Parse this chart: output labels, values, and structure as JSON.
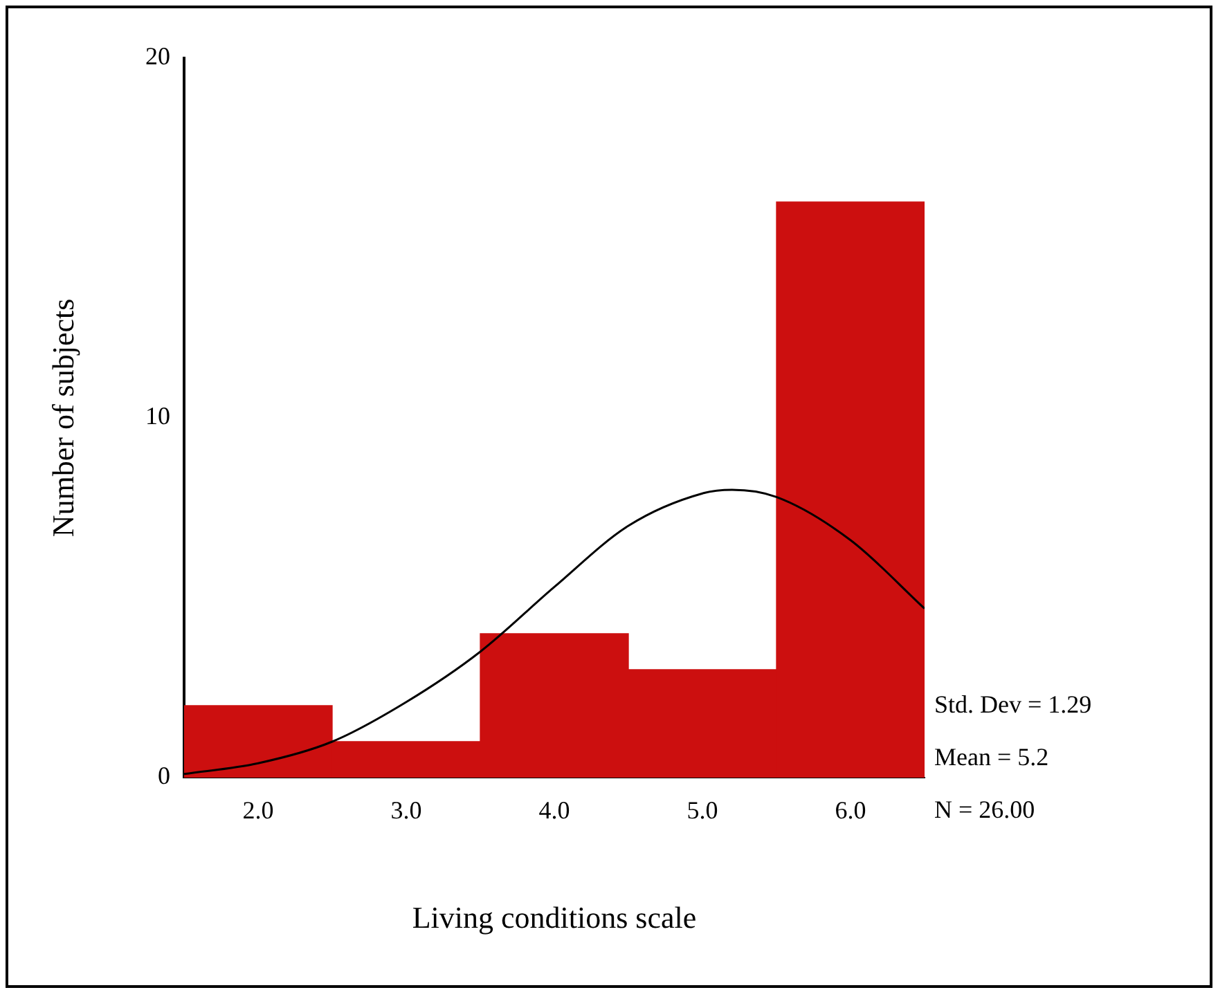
{
  "chart_data": {
    "type": "histogram",
    "xlabel": "Living conditions scale",
    "ylabel": "Number of subjects",
    "bins": [
      1.5,
      2.5,
      3.5,
      4.5,
      5.5,
      6.5
    ],
    "values": [
      2,
      1,
      4,
      3,
      16
    ],
    "color": "#cc0f0f",
    "series": [
      {
        "type": "line",
        "color": "#000000",
        "x": [
          1.5,
          2,
          2.5,
          3,
          3.5,
          4,
          4.5,
          5,
          5.2,
          5.5,
          6,
          6.5
        ],
        "values": [
          0.1,
          0.4,
          1,
          2.1,
          3.5,
          5.3,
          7,
          7.9,
          8,
          7.8,
          6.6,
          4.7
        ]
      }
    ],
    "xlim": [
      1.5,
      6.5
    ],
    "xticks": [
      {
        "value": 2,
        "label": "2.0"
      },
      {
        "value": 3,
        "label": "3.0"
      },
      {
        "value": 4,
        "label": "4.0"
      },
      {
        "value": 5,
        "label": "5.0"
      },
      {
        "value": 6,
        "label": "6.0"
      }
    ],
    "ylim": [
      0,
      20
    ],
    "yticks": [
      0,
      10,
      20
    ],
    "grid": false,
    "legend": false,
    "marker": "none",
    "annotations": [
      "Std. Dev = 1.29",
      "Mean = 5.2",
      "N = 26.00"
    ]
  }
}
